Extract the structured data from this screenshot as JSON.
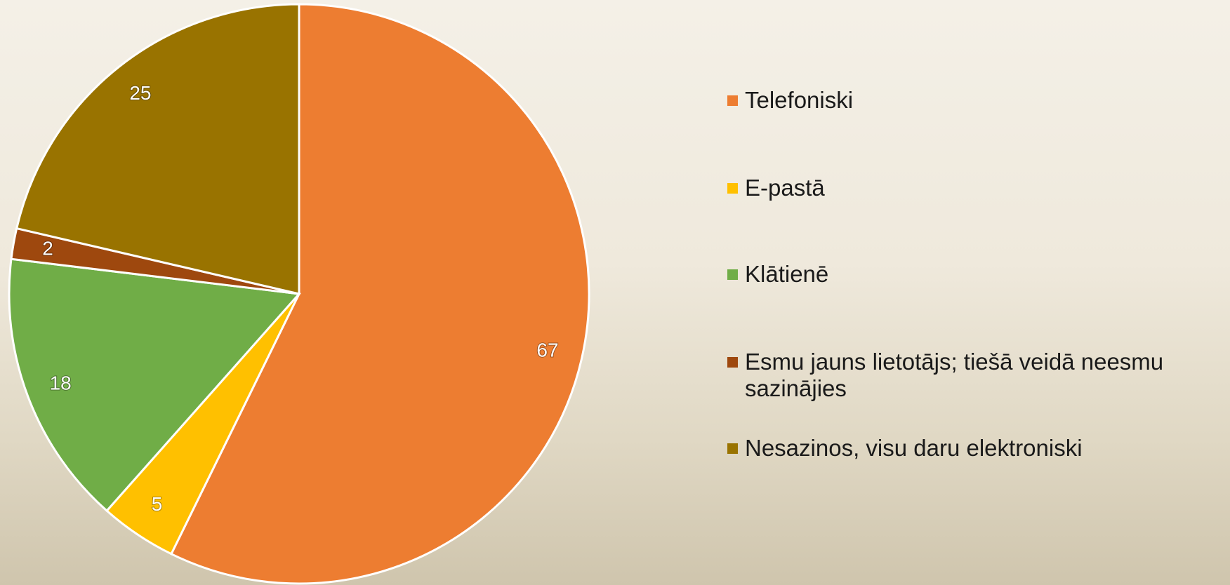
{
  "chart_data": {
    "type": "pie",
    "categories": [
      "Telefoniski",
      "E-pastā",
      "Klātienē",
      "Esmu jauns lietotājs; tiešā veidā neesmu sazinājies",
      "Nesazinos, visu daru elektroniski"
    ],
    "values": [
      67,
      5,
      18,
      2,
      25
    ],
    "colors": [
      "#ED7D31",
      "#FFC000",
      "#70AD47",
      "#9E480E",
      "#997300"
    ],
    "legend": "right"
  }
}
